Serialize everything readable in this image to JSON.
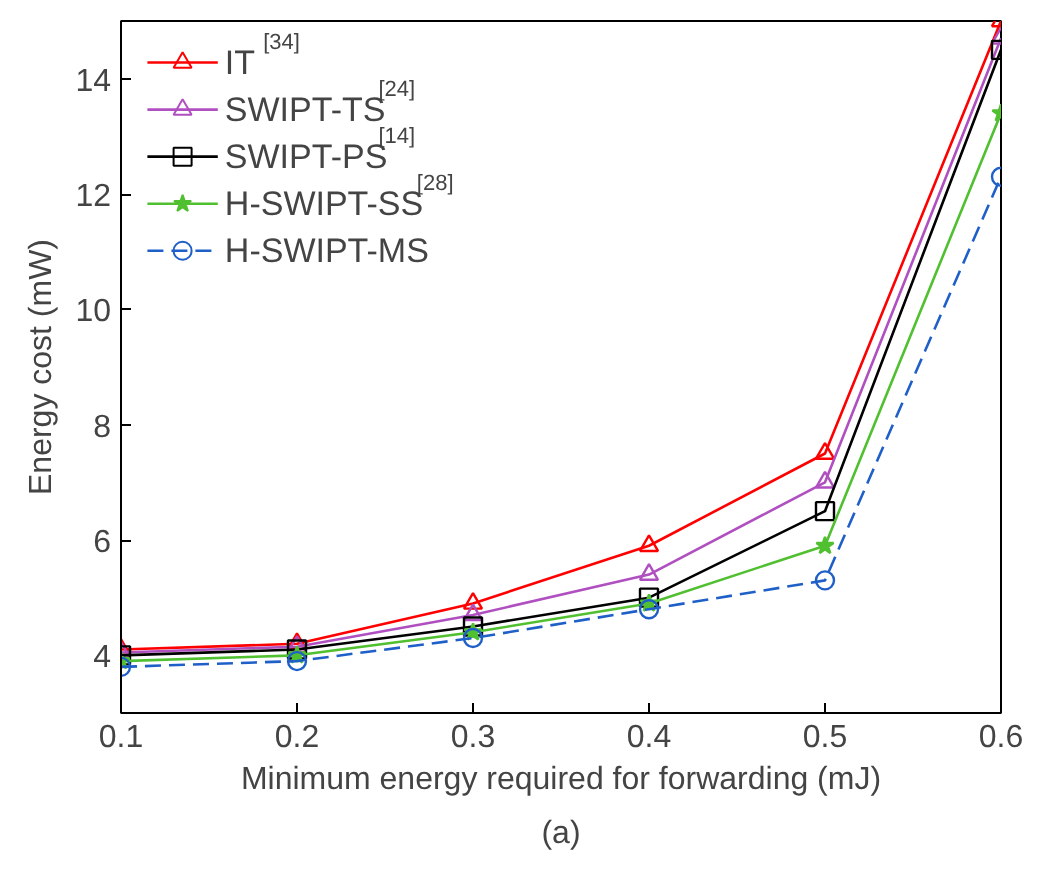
{
  "chart_data": {
    "type": "line",
    "xlabel": "Minimum energy required for forwarding (mJ)",
    "ylabel": "Energy cost (mW)",
    "annotations": [
      "(a)"
    ],
    "x": [
      0.1,
      0.2,
      0.3,
      0.4,
      0.5,
      0.6
    ],
    "xlim": [
      0.1,
      0.6
    ],
    "xticks": [
      0.1,
      0.2,
      0.3,
      0.4,
      0.5,
      0.6
    ],
    "ylim": [
      3,
      15
    ],
    "yticks": [
      4,
      6,
      8,
      10,
      12,
      14
    ],
    "grid": false,
    "legend": "top left",
    "series": [
      {
        "name": "IT$^{[34]}$",
        "color": "#ff0000",
        "marker": "triangle",
        "line_style": "solid",
        "values": [
          4.1,
          4.2,
          4.9,
          5.9,
          7.5,
          15
        ]
      },
      {
        "name": "SWIPT-TS$^{[24]}$",
        "color": "#b04fc0",
        "marker": "triangle",
        "line_style": "solid",
        "values": [
          4.05,
          4.15,
          4.7,
          5.4,
          7.0,
          14.7
        ]
      },
      {
        "name": "SWIPT-PS$^{[14]}$",
        "color": "#000000",
        "marker": "square",
        "line_style": "solid",
        "values": [
          4.0,
          4.1,
          4.5,
          5.0,
          6.5,
          14.5
        ]
      },
      {
        "name": "H-SWIPT-SS$^{[28]}$",
        "color": "#50c030",
        "marker": "star",
        "line_style": "solid",
        "values": [
          3.9,
          4.0,
          4.4,
          4.9,
          5.9,
          13.4
        ]
      },
      {
        "name": "H-SWIPT-MS",
        "color": "#1f5fc8",
        "marker": "circle",
        "line_style": "dashed",
        "values": [
          3.8,
          3.9,
          4.3,
          4.8,
          5.3,
          12.3
        ]
      }
    ]
  }
}
